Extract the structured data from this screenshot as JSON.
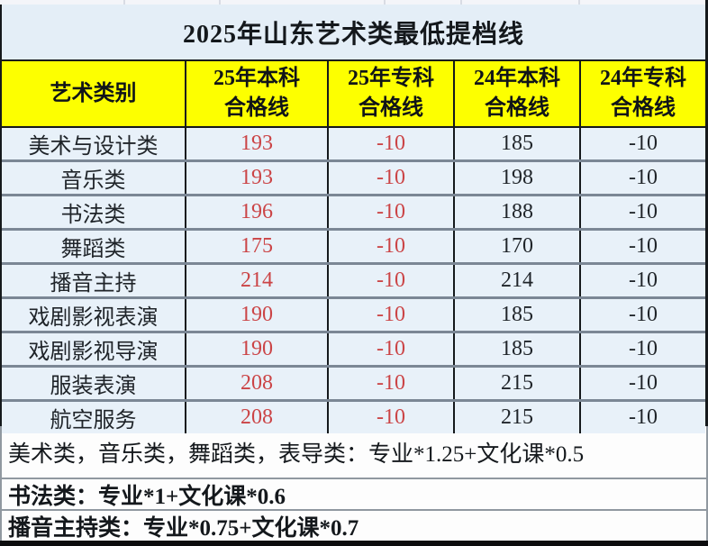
{
  "colors": {
    "title_bg": "#e4eef7",
    "header_bg": "#fdff00",
    "cell_bg": "#e8f1f9",
    "value_2025_color": "#cb4446",
    "value_2024_color": "#1f2429",
    "vertical_border": "#15191c",
    "row_separator": "#7b8795"
  },
  "chart_data": {
    "type": "table",
    "title": "2025年山东艺术类最低提档线",
    "header": {
      "col1": "艺术类别",
      "col2": {
        "line1": "25年本科",
        "line2": "合格线"
      },
      "col3": {
        "line1": "25年专科",
        "line2": "合格线"
      },
      "col4": {
        "line1": "24年本科",
        "line2": "合格线"
      },
      "col5": {
        "line1": "24年专科",
        "line2": "合格线"
      }
    },
    "rows": [
      {
        "category": "美术与设计类",
        "bk25": "193",
        "zk25": "-10",
        "bk24": "185",
        "zk24": "-10"
      },
      {
        "category": "音乐类",
        "bk25": "193",
        "zk25": "-10",
        "bk24": "198",
        "zk24": "-10"
      },
      {
        "category": "书法类",
        "bk25": "196",
        "zk25": "-10",
        "bk24": "188",
        "zk24": "-10"
      },
      {
        "category": "舞蹈类",
        "bk25": "175",
        "zk25": "-10",
        "bk24": "170",
        "zk24": "-10"
      },
      {
        "category": "播音主持",
        "bk25": "214",
        "zk25": "-10",
        "bk24": "214",
        "zk24": "-10"
      },
      {
        "category": "戏剧影视表演",
        "bk25": "190",
        "zk25": "-10",
        "bk24": "185",
        "zk24": "-10"
      },
      {
        "category": "戏剧影视导演",
        "bk25": "190",
        "zk25": "-10",
        "bk24": "185",
        "zk24": "-10"
      },
      {
        "category": "服装表演",
        "bk25": "208",
        "zk25": "-10",
        "bk24": "215",
        "zk24": "-10"
      },
      {
        "category": "航空服务",
        "bk25": "208",
        "zk25": "-10",
        "bk24": "215",
        "zk24": "-10"
      }
    ],
    "notes": [
      "美术类，音乐类，舞蹈类，表导类：专业*1.25+文化课*0.5",
      "书法类：专业*1+文化课*0.6",
      "播音主持类：专业*0.75+文化课*0.7"
    ]
  }
}
